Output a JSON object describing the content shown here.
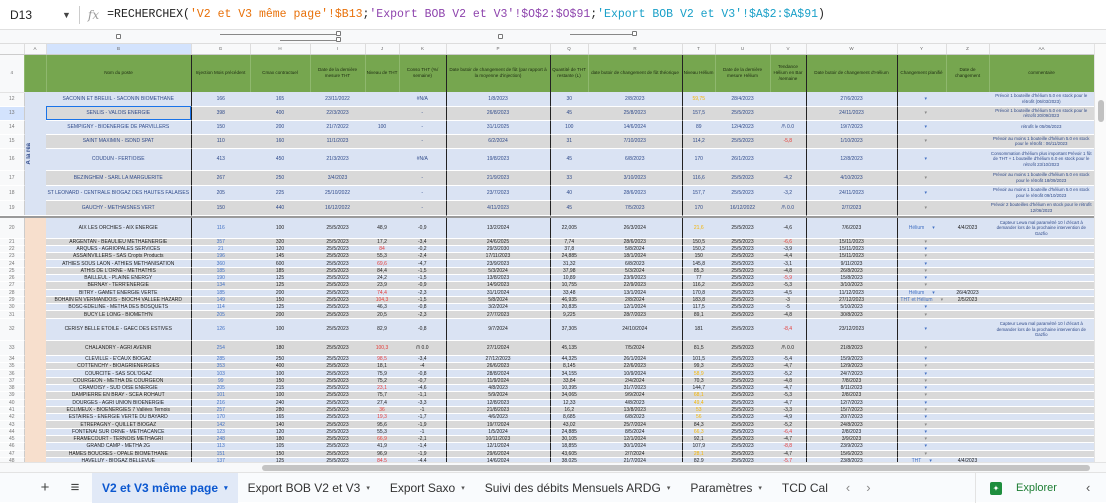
{
  "formula_bar": {
    "cell_ref": "D13",
    "fx_icon": "fx-icon",
    "formula_parts": [
      {
        "t": "=RECHERCHEX(",
        "c": ""
      },
      {
        "t": "'V2 et V3 même page'!$B13",
        "c": "f-o"
      },
      {
        "t": ";",
        "c": ""
      },
      {
        "t": "'Export BOB V2 et V3'!$O$2:$O$91",
        "c": "f-p"
      },
      {
        "t": ";",
        "c": ""
      },
      {
        "t": "'Export BOB V2 et V3'!$A$2:$A$91",
        "c": "f-t"
      },
      {
        "t": ")",
        "c": ""
      }
    ]
  },
  "colors": {
    "header_green": "#76a64f",
    "row_blue": "#dae3f3",
    "row_gray": "#d9d9d9",
    "section_peach": "#f7dfcd",
    "red": "#e53935",
    "orange": "#f4b400",
    "selection": "#1a73e8",
    "active_tab": "#0b57d0"
  },
  "sheet": {
    "header_row_number": "4",
    "group_label": "A la réa",
    "columns": [
      {
        "key": "A",
        "letter": "A",
        "header": ""
      },
      {
        "key": "B",
        "letter": "B",
        "header": "Nom du poste"
      },
      {
        "key": "G",
        "letter": "G",
        "header": "Injection Mois précédent"
      },
      {
        "key": "H",
        "letter": "H",
        "header": "Cmax contractuel"
      },
      {
        "key": "I",
        "letter": "I",
        "header": "Date de la dernière mesure THT"
      },
      {
        "key": "J",
        "letter": "J",
        "header": "Niveau de THT"
      },
      {
        "key": "K",
        "letter": "K",
        "header": "Conso THT (%/ semaine)"
      },
      {
        "key": "P",
        "letter": "P",
        "header": "Date butoir de changement de fût (par rapport à la moyenne d'injection)"
      },
      {
        "key": "Q",
        "letter": "Q",
        "header": "Quantité de THT restante (L)"
      },
      {
        "key": "R",
        "letter": "R",
        "header": "date butoir de changement de fût théorique"
      },
      {
        "key": "T",
        "letter": "T",
        "header": "Niveau Hélium"
      },
      {
        "key": "U",
        "letter": "U",
        "header": "Date de la dernière mesure Hélium"
      },
      {
        "key": "V",
        "letter": "V",
        "header": "Tendance Hélium en Bar /semaine"
      },
      {
        "key": "W",
        "letter": "W",
        "header": "Date butoir de changement d'Hélium"
      },
      {
        "key": "Y",
        "letter": "Y",
        "header": "Changement planifié"
      },
      {
        "key": "Z",
        "letter": "Z",
        "header": "Date de changement"
      },
      {
        "key": "AA",
        "letter": "AA",
        "header": "commentaire"
      }
    ],
    "dropdown_glyph": "▾",
    "selected_cell": "B13",
    "upper_rows": [
      {
        "n": "12",
        "c": [
          "SACONIN ET BREUIL - SACONIN BIOMETHANE",
          "166",
          "165",
          "23/11/2022",
          "",
          "#N/A",
          "1/8/2023",
          "30",
          "2/8/2023",
          "59,75",
          "28/4/2023",
          "",
          "27/6/2023",
          "",
          "",
          "Prévoir 1 bouteille d'hélium 5.0 en stock pour le rétrofit (06/03/2023)"
        ],
        "hl": {
          "T": "orange"
        }
      },
      {
        "n": "13",
        "c": [
          "SENLIS - VALOIS ENERGIE",
          "398",
          "400",
          "22/3/2023",
          "",
          "-",
          "26/8/2023",
          "45",
          "25/8/2023",
          "157,5",
          "25/5/2023",
          "",
          "24/11/2023",
          "",
          "",
          "Prévoir 1 bouteille d'hélium 5.0 en stock pour le rétrofit 20/09/2023"
        ]
      },
      {
        "n": "14",
        "c": [
          "SEMPIGNY - BIOENERGIE DE PARVILLERS",
          "150",
          "200",
          "21/7/2022",
          "100",
          "-",
          "31/1/2025",
          "100",
          "14/6/2024",
          "89",
          "12/4/2023",
          "/!\\ 0.0",
          "19/7/2023",
          "",
          "",
          "rétrofit le 05/06/2023"
        ]
      },
      {
        "n": "15",
        "c": [
          "SAINT MAXIMIN - ISDND SPAT",
          "110",
          "160",
          "11/1/2023",
          "",
          "-",
          "6/2/2024",
          "31",
          "7/10/2023",
          "114,2",
          "25/5/2023",
          "-5,8",
          "1/10/2023",
          "",
          "",
          "Prévoir au moins 1 bouteille d'hélium 5.0 en stock pour le rétrofit : 06/11/2023"
        ],
        "hl": {
          "V": "red"
        }
      },
      {
        "n": "16",
        "c": [
          "COUDUN - FERTIOISE",
          "413",
          "450",
          "21/3/2023",
          "",
          "#N/A",
          "19/8/2023",
          "45",
          "6/8/2023",
          "170",
          "26/1/2023",
          "",
          "12/8/2023",
          "",
          "",
          "Consommation d'hélium plus important Prévoir 1 fût de THT + 1 bouteille d'hélium 6.0 en stock pour le rétrofit 23/10/2023"
        ]
      },
      {
        "n": "17",
        "c": [
          "BEZINGHEM - SARL LA MARGUERITE",
          "267",
          "250",
          "3/4/2023",
          "",
          "-",
          "21/9/2023",
          "33",
          "3/10/2023",
          "116,6",
          "25/5/2023",
          "-4,2",
          "4/10/2023",
          "",
          "",
          "Prévoir au moins 1 bouteille d'hélium 5.0 en stock pour le rétrofit 18/09/2023"
        ]
      },
      {
        "n": "18",
        "c": [
          "ST LEONARD - CENTRALE BIOGAZ DES HAUTES FALAISES",
          "205",
          "225",
          "25/10/2022",
          "",
          "-",
          "23/7/2023",
          "40",
          "28/6/2023",
          "157,7",
          "25/5/2023",
          "-3,2",
          "24/11/2023",
          "",
          "",
          "Prévoir au moins 1 bouteille d'hélium 5.0 en stock pour le rétrofit 09/10/2023"
        ]
      },
      {
        "n": "19",
        "c": [
          "GAUCHY - METHAISNES VERT",
          "150",
          "440",
          "16/12/2022",
          "",
          "-",
          "4/11/2023",
          "45",
          "7/5/2023",
          "170",
          "16/12/2022",
          "/!\\ 0.0",
          "2/7/2023",
          "",
          "",
          "Prévoir 2 bouteilles d'hélium en stock pour le rétrofit 12/06/2023"
        ]
      }
    ],
    "lower_rows": [
      {
        "n": "20",
        "c": [
          "AIX LES ORCHIES - AIX ENERGIE",
          "116",
          "100",
          "25/5/2023",
          "48,9",
          "-0,9",
          "13/2/2024",
          "22,005",
          "26/3/2024",
          "21,6",
          "25/5/2023",
          "-4,6",
          "7/6/2023",
          "Hélium",
          "4/4/2023",
          "Capteur Lewa mal paramétré 10 l d'écart à demander lors de la prochaine intervention de Gazfio"
        ],
        "hl": {
          "T": "orange"
        }
      },
      {
        "n": "21",
        "c": [
          "ARGENTAN - BEAULIEU METHAENERGIE",
          "357",
          "320",
          "25/5/2023",
          "17,2",
          "-3,4",
          "24/6/2025",
          "7,74",
          "28/6/2023",
          "150,5",
          "25/5/2023",
          "-6,6",
          "15/11/2023",
          "",
          "",
          ""
        ],
        "hl": {
          "V": "red"
        }
      },
      {
        "n": "22",
        "c": [
          "ARQUES - AGRIOPALES SERVICES",
          "21",
          "120",
          "25/5/2023",
          "84",
          "-0,2",
          "29/3/2030",
          "37,8",
          "5/8/2024",
          "150,2",
          "25/5/2023",
          "-3,9",
          "15/11/2023",
          "",
          "",
          ""
        ],
        "hl": {
          "J": "red"
        }
      },
      {
        "n": "23",
        "c": [
          "ASSAINVILLERS - SAS Cropts Products",
          "196",
          "145",
          "25/5/2023",
          "55,3",
          "-2,4",
          "17/11/2023",
          "24,885",
          "18/1/2024",
          "150",
          "25/5/2023",
          "-4,4",
          "15/11/2023",
          "",
          "",
          ""
        ]
      },
      {
        "n": "24",
        "c": [
          "ATHIES SOUS LAON - ATHIES METHANISATION",
          "360",
          "600",
          "25/5/2023",
          "69,6",
          "-4,7",
          "23/9/2023",
          "31,32",
          "6/8/2023",
          "145,8",
          "25/5/2023",
          "-3,1",
          "9/11/2023",
          "",
          "",
          ""
        ],
        "hl": {
          "J": "red"
        }
      },
      {
        "n": "25",
        "c": [
          "ATHIS DE L'ORNE - METHATHIS",
          "185",
          "185",
          "25/5/2023",
          "84,4",
          "-1,5",
          "5/3/2024",
          "37,98",
          "5/3/2024",
          "85,3",
          "25/5/2023",
          "-4,8",
          "26/8/2023",
          "",
          "",
          ""
        ]
      },
      {
        "n": "26",
        "c": [
          "BAILLEUL - PLAINE ENERGY",
          "190",
          "125",
          "25/5/2023",
          "24,2",
          "-1,5",
          "13/8/2023",
          "10,89",
          "23/9/2023",
          "77",
          "25/5/2023",
          "-5,9",
          "15/8/2023",
          "",
          "",
          ""
        ],
        "hl": {
          "V": "red"
        }
      },
      {
        "n": "27",
        "c": [
          "BERNAY - TERR'ENERGIE",
          "134",
          "125",
          "25/5/2023",
          "23,9",
          "-0,9",
          "14/9/2023",
          "10,755",
          "22/9/2023",
          "116,2",
          "25/5/2023",
          "-5,3",
          "3/10/2023",
          "",
          "",
          ""
        ]
      },
      {
        "n": "28",
        "c": [
          "BITRY - GAMET ENERGIE VERTE",
          "185",
          "200",
          "25/5/2023",
          "74,4",
          "-2,3",
          "31/1/2024",
          "33,48",
          "13/1/2024",
          "170,8",
          "25/5/2023",
          "-4,5",
          "11/12/2023",
          "Hélium",
          "26/4/2023",
          ""
        ],
        "hl": {
          "J": "red"
        }
      },
      {
        "n": "29",
        "c": [
          "BOHAIN EN VERMANDOIS - BIOCH4 VALLEE HAZARD",
          "149",
          "150",
          "25/5/2023",
          "104,3",
          "-1,5",
          "5/8/2024",
          "46,935",
          "2/8/2024",
          "183,8",
          "25/5/2023",
          "-3",
          "27/12/2023",
          "THT et Hélium",
          "2/5/2023",
          ""
        ],
        "hl": {
          "J": "red"
        }
      },
      {
        "n": "30",
        "c": [
          "BOSC-EDELINE - METHA DES BOSQUETS",
          "114",
          "125",
          "25/5/2023",
          "46,3",
          "-0,8",
          "3/2/2024",
          "20,835",
          "12/1/2024",
          "117,5",
          "25/5/2023",
          "-5",
          "5/10/2023",
          "",
          "",
          ""
        ]
      },
      {
        "n": "31",
        "c": [
          "BUCY LE LONG - BIOMETH'N",
          "205",
          "200",
          "25/5/2023",
          "20,5",
          "-2,3",
          "27/7/2023",
          "9,225",
          "28/7/2023",
          "89,1",
          "25/5/2023",
          "-4,8",
          "30/8/2023",
          "",
          "",
          ""
        ]
      },
      {
        "n": "32",
        "c": [
          "CERISY BELLE ETOILE - GAEC DES ESTIVES",
          "126",
          "100",
          "25/5/2023",
          "82,9",
          "-0,8",
          "9/7/2024",
          "37,305",
          "24/10/2024",
          "181",
          "25/5/2023",
          "-8,4",
          "23/12/2023",
          "",
          "",
          "Capteur Lewa mal paramétré 10 l d'écart à demander lors de la prochaine intervention de Gazfio"
        ],
        "hl": {
          "V": "red"
        }
      },
      {
        "n": "33",
        "c": [
          "CHALANDRY - AGRI AVENIR",
          "254",
          "180",
          "25/5/2023",
          "100,3",
          "/!\\ 0.0",
          "27/1/2024",
          "45,135",
          "7/5/2024",
          "81,5",
          "25/5/2023",
          "/!\\ 0.0",
          "21/8/2023",
          "",
          "",
          ""
        ],
        "hl": {
          "J": "red"
        }
      },
      {
        "n": "34",
        "c": [
          "CLEVILLE - E'CAUX BIOGAZ",
          "285",
          "250",
          "25/5/2023",
          "98,5",
          "-3,4",
          "27/12/2023",
          "44,325",
          "26/1/2024",
          "101,5",
          "25/5/2023",
          "-5,4",
          "15/9/2023",
          "",
          "",
          ""
        ],
        "hl": {
          "J": "red"
        }
      },
      {
        "n": "35",
        "c": [
          "COTTENCHY - BIOAGRIENERGIES",
          "353",
          "400",
          "25/5/2023",
          "18,1",
          "-4",
          "26/6/2023",
          "8,145",
          "22/6/2023",
          "99,3",
          "25/5/2023",
          "-4,7",
          "12/9/2023",
          "",
          "",
          ""
        ]
      },
      {
        "n": "36",
        "c": [
          "COURCITE - SAS SOL'OGAZ",
          "103",
          "100",
          "25/5/2023",
          "75,9",
          "-0,8",
          "28/8/2024",
          "34,155",
          "10/9/2024",
          "58,9",
          "25/5/2023",
          "-5,2",
          "24/7/2023",
          "",
          "",
          ""
        ],
        "hl": {
          "T": "orange"
        }
      },
      {
        "n": "37",
        "c": [
          "COURGEON - METHA DE COURGEON",
          "99",
          "150",
          "25/5/2023",
          "75,2",
          "-0,7",
          "11/9/2024",
          "33,84",
          "2/4/2024",
          "70,3",
          "25/5/2023",
          "-4,8",
          "7/8/2023",
          "",
          "",
          ""
        ]
      },
      {
        "n": "38",
        "c": [
          "CRAMOISY - SUD OISE ENERGIE",
          "205",
          "215",
          "25/5/2023",
          "23,1",
          "-4,6",
          "4/8/2023",
          "10,395",
          "31/7/2023",
          "144,7",
          "25/5/2023",
          "-4,7",
          "8/11/2023",
          "",
          "",
          ""
        ],
        "hl": {
          "J": "red"
        }
      },
      {
        "n": "39",
        "c": [
          "DAMPIERRE EN BRAY - SCEA ROHAUT",
          "101",
          "100",
          "25/5/2023",
          "75,7",
          "-1,1",
          "5/9/2024",
          "34,065",
          "9/9/2024",
          "68,1",
          "25/5/2023",
          "-5,3",
          "2/8/2023",
          "",
          "",
          ""
        ],
        "hl": {
          "T": "orange"
        }
      },
      {
        "n": "40",
        "c": [
          "DOURGES - AGRI UNION BIOENERGIE",
          "216",
          "240",
          "25/5/2023",
          "27,4",
          "-3,3",
          "12/8/2023",
          "12,33",
          "4/8/2023",
          "49,4",
          "25/5/2023",
          "-4,7",
          "12/7/2023",
          "",
          "",
          ""
        ],
        "hl": {
          "T": "orange"
        }
      },
      {
        "n": "41",
        "c": [
          "ECLIMEUX - BIOENERGIES 7 Vallées Ternois",
          "257",
          "280",
          "25/5/2023",
          "36",
          "-1",
          "21/8/2023",
          "16,2",
          "13/8/2023",
          "53",
          "25/5/2023",
          "-3,3",
          "15/7/2023",
          "",
          "",
          ""
        ],
        "hl": {
          "J": "red",
          "T": "orange"
        }
      },
      {
        "n": "42",
        "c": [
          "ESTAIRES - ENERGIE VERTE DU BAYARD",
          "170",
          "165",
          "25/5/2023",
          "19,3",
          "-1,7",
          "4/6/2023",
          "8,685",
          "6/8/2023",
          "56",
          "25/5/2023",
          "-4,9",
          "20/7/2023",
          "",
          "",
          ""
        ],
        "hl": {
          "J": "red",
          "T": "orange"
        }
      },
      {
        "n": "43",
        "c": [
          "ETREPAGNY - QUILLET BIOGAZ",
          "142",
          "140",
          "25/5/2023",
          "95,6",
          "-1,9",
          "19/7/2024",
          "43,02",
          "25/7/2024",
          "84,3",
          "25/5/2023",
          "-5,2",
          "24/8/2023",
          "",
          "",
          ""
        ]
      },
      {
        "n": "44",
        "c": [
          "FONTENAI SUR ORNE - METHACANCE",
          "123",
          "120",
          "25/5/2023",
          "55,3",
          "-1",
          "1/5/2024",
          "24,885",
          "8/5/2024",
          "66,3",
          "25/5/2023",
          "-6,4",
          "2/8/2023",
          "",
          "",
          ""
        ],
        "hl": {
          "T": "orange",
          "V": "red"
        }
      },
      {
        "n": "45",
        "c": [
          "FRAMECOURT - TERNOIS METHAGRI",
          "248",
          "180",
          "25/5/2023",
          "66,9",
          "-2,1",
          "10/11/2023",
          "30,105",
          "12/1/2024",
          "92,1",
          "25/5/2023",
          "-4,7",
          "3/9/2023",
          "",
          "",
          ""
        ],
        "hl": {
          "J": "red"
        }
      },
      {
        "n": "46",
        "c": [
          "GRAND CAMP - METHA 2G",
          "113",
          "105",
          "25/5/2023",
          "41,9",
          "-1,4",
          "12/1/2024",
          "18,855",
          "30/1/2024",
          "107,9",
          "25/5/2023",
          "-8,8",
          "23/9/2023",
          "",
          "",
          ""
        ],
        "hl": {
          "V": "red"
        }
      },
      {
        "n": "47",
        "c": [
          "HAMES BOUCRES - OPALE BIOMETHANE",
          "151",
          "150",
          "25/5/2023",
          "96,9",
          "-1,9",
          "29/6/2024",
          "43,605",
          "2/7/2024",
          "28,1",
          "25/5/2023",
          "-4,7",
          "15/6/2023",
          "",
          "",
          ""
        ],
        "hl": {
          "T": "orange"
        }
      },
      {
        "n": "48",
        "c": [
          "HAVELUY - BIOGAZ BELLEVUE",
          "137",
          "125",
          "25/5/2023",
          "84,5",
          "-4,4",
          "14/6/2024",
          "38,025",
          "21/7/2024",
          "82,9",
          "25/5/2023",
          "-5,7",
          "23/8/2023",
          "THT",
          "4/4/2023",
          ""
        ],
        "hl": {
          "J": "red",
          "V": "red"
        }
      }
    ]
  },
  "tabs": {
    "add_icon": "+",
    "menu_icon": "≡",
    "items": [
      {
        "label": "V2 et V3 même page",
        "active": true
      },
      {
        "label": "Export BOB V2 et V3"
      },
      {
        "label": "Export Saxo"
      },
      {
        "label": "Suivi des débits Mensuels ARDG"
      },
      {
        "label": "Paramètres"
      },
      {
        "label": "TCD Cal"
      }
    ],
    "caret": "▾",
    "prev": "‹",
    "next": "›",
    "explore_label": "Explorer",
    "collapse": "‹"
  }
}
